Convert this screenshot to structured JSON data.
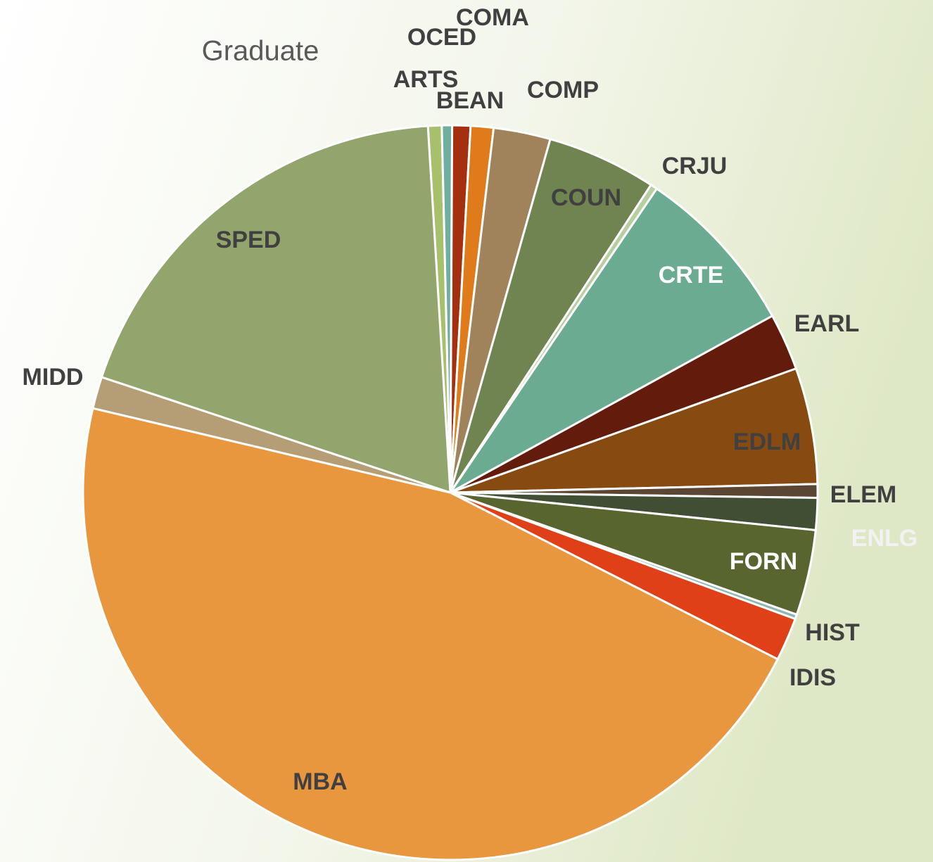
{
  "chart_data": {
    "type": "pie",
    "title": "Graduate",
    "categories": [
      "ARTS",
      "OCED",
      "BEAN",
      "COMA",
      "COMP",
      "COUN",
      "CRJU",
      "CRTE",
      "EARL",
      "EDLM",
      "ELEM",
      "ENLG",
      "FORN",
      "HIST",
      "IDIS",
      "MBA",
      "MIDD",
      "SPED"
    ],
    "values": [
      0.6,
      0.45,
      0.8,
      1.0,
      2.5,
      4.8,
      0.3,
      7.5,
      2.5,
      5.1,
      0.6,
      1.4,
      3.75,
      0.2,
      1.9,
      46.1,
      1.4,
      18.9
    ],
    "colors": [
      "#a6c06b",
      "#6fafa0",
      "#a5300f",
      "#e07b1b",
      "#a0835a",
      "#6f8451",
      "#b7cfa0",
      "#6aab92",
      "#631c0c",
      "#874a11",
      "#5a4632",
      "#404f34",
      "#59652f",
      "#8fb7b0",
      "#e04017",
      "#e8973e",
      "#b59e75",
      "#91a56d"
    ],
    "label_colors": [
      "#404040",
      "#404040",
      "#404040",
      "#404040",
      "#404040",
      "#404040",
      "#404040",
      "#ffffff",
      "#404040",
      "#404040",
      "#404040",
      "#f2f2f2",
      "#ffffff",
      "#404040",
      "#404040",
      "#404040",
      "#404040",
      "#404040"
    ]
  }
}
